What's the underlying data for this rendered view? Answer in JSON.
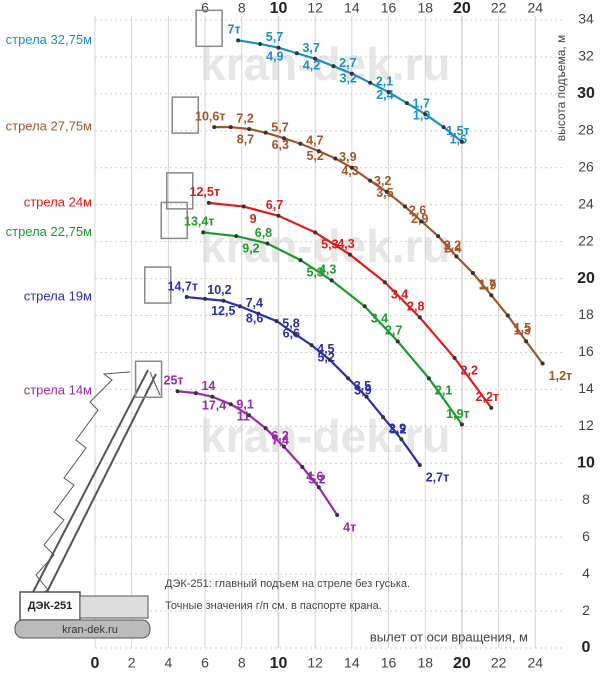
{
  "chart_data": {
    "type": "line",
    "x_label": "вылет от оси вращения, м",
    "y_label": "высота подъема, м",
    "notes": [
      "ДЭК-251: главный подъем на стреле без гуська.",
      "Точные значения г/п см. в паспорте крана."
    ],
    "crane_label": "ДЭК-251",
    "watermark": "kran-dek.ru",
    "xlim": [
      0,
      26
    ],
    "ylim": [
      0,
      34
    ],
    "xticks": [
      0,
      2,
      4,
      6,
      8,
      10,
      12,
      14,
      16,
      18,
      20,
      22,
      24
    ],
    "yticks": [
      0,
      2,
      4,
      6,
      8,
      10,
      12,
      14,
      16,
      18,
      20,
      22,
      24,
      26,
      28,
      30,
      32,
      34
    ],
    "grid": true,
    "series": [
      {
        "name": "стрела 32,75м",
        "color": "#1c8fc4",
        "x": [
          7.8,
          9.0,
          10.0,
          11.0,
          12.0,
          13.0,
          14.0,
          15.0,
          16.0,
          17.0,
          18.0,
          19.0,
          20.0
        ],
        "values": [
          32.9,
          32.7,
          32.5,
          32.2,
          31.9,
          31.5,
          31.1,
          30.6,
          30.1,
          29.5,
          28.9,
          28.2,
          27.4
        ],
        "loads": [
          7,
          4.9,
          5.7,
          4.2,
          3.7,
          3.2,
          2.7,
          2.4,
          2.1,
          1.9,
          1.7,
          1.6,
          1.5
        ],
        "load_labels": [
          "7т",
          "4,9",
          "5,7",
          "4,2",
          "3,7",
          "3,2",
          "2,7",
          "2,4",
          "2,1",
          "1,9",
          "1,7",
          "1,6",
          "1,5т"
        ]
      },
      {
        "name": "стрела 27,75м",
        "color": "#a3562a",
        "x": [
          6.5,
          7.4,
          8.4,
          9.3,
          10.3,
          11.2,
          12.2,
          13.1,
          14.0,
          15.0,
          15.9,
          16.9,
          17.8,
          18.7,
          19.7,
          20.6,
          21.6,
          22.5,
          23.5,
          24.4
        ],
        "values": [
          28.2,
          28.2,
          28.1,
          27.9,
          27.6,
          27.3,
          26.9,
          26.5,
          26.0,
          25.3,
          24.7,
          23.9,
          23.1,
          22.3,
          21.2,
          20.3,
          19.1,
          18.0,
          16.6,
          15.4
        ],
        "loads": [
          10.6,
          8.7,
          7.2,
          6.3,
          5.7,
          5.2,
          4.7,
          4.3,
          3.9,
          3.5,
          3.2,
          2.9,
          2.6,
          2.4,
          2.2,
          1.9,
          1.7,
          1.5,
          1.3,
          1.2
        ],
        "load_labels": [
          "10,6т",
          "8,7",
          "7,2",
          "6,3",
          "5,7",
          "5,2",
          "4,7",
          "4,3",
          "3,9",
          "3,5",
          "3,2",
          "2,9",
          "2,6",
          "2,4",
          "2,2",
          "1,9",
          "1,7",
          "1,5",
          "1,3",
          "1,2т"
        ]
      },
      {
        "name": "стрела 24м",
        "color": "#e01b1b",
        "x": [
          6.2,
          8.1,
          10.0,
          12.0,
          13.9,
          15.8,
          17.7,
          19.6,
          21.6
        ],
        "values": [
          24.1,
          23.9,
          23.4,
          22.5,
          21.3,
          19.8,
          17.9,
          15.7,
          13.0
        ],
        "loads": [
          12.5,
          9,
          6.7,
          5.3,
          4.3,
          3.4,
          2.8,
          2.2,
          2.2
        ],
        "load_labels": [
          "12,5т",
          "9",
          "6,7",
          "5,3",
          "4,3",
          "3,4",
          "2,8",
          "2,2",
          "2,2т"
        ]
      },
      {
        "name": "стрела 22,75м",
        "color": "#1d9a2c",
        "x": [
          5.9,
          7.7,
          9.4,
          11.2,
          12.9,
          14.7,
          16.5,
          18.2,
          20.0
        ],
        "values": [
          22.5,
          22.3,
          21.9,
          21.0,
          19.9,
          18.5,
          16.6,
          14.6,
          12.1
        ],
        "loads": [
          13.4,
          9.2,
          6.8,
          5.3,
          4.3,
          3.4,
          2.7,
          2.1,
          1.9
        ],
        "load_labels": [
          "13,4т",
          "9,2",
          "6,8",
          "5,3",
          "4,3",
          "3,4",
          "2,7",
          "2,1",
          "1,9т"
        ]
      },
      {
        "name": "стрела 19м",
        "color": "#2b2fae",
        "x": [
          5.0,
          6.0,
          7.0,
          7.9,
          8.9,
          9.9,
          10.9,
          11.8,
          12.8,
          13.8,
          14.8,
          15.7,
          16.7,
          17.7
        ],
        "values": [
          19.0,
          18.9,
          18.8,
          18.5,
          18.1,
          17.7,
          17.0,
          16.4,
          15.6,
          14.6,
          13.6,
          12.5,
          11.3,
          9.9
        ],
        "loads": [
          14.7,
          12.5,
          10.2,
          8.6,
          7.4,
          6.6,
          5.8,
          5.2,
          4.5,
          3.9,
          3.5,
          3.2,
          2.9,
          2.7
        ],
        "load_labels": [
          "14,7т",
          "12,5",
          "10,2",
          "8,6",
          "7,4",
          "6,6",
          "5,8",
          "5,2",
          "4,5",
          "3,9",
          "3,5",
          "3,2",
          "2,9",
          "2,7т"
        ]
      },
      {
        "name": "стрела 14м",
        "color": "#9a2aaa",
        "x": [
          4.5,
          5.5,
          6.4,
          7.4,
          8.4,
          9.3,
          10.3,
          11.3,
          12.2,
          13.2
        ],
        "values": [
          13.9,
          13.8,
          13.6,
          13.2,
          12.6,
          11.9,
          10.9,
          9.8,
          8.7,
          7.2
        ],
        "loads": [
          25,
          17.4,
          14,
          11,
          9.1,
          7.4,
          6.2,
          5.2,
          4.6,
          4
        ],
        "load_labels": [
          "25т",
          "17,4",
          "14",
          "11",
          "9,1",
          "7,4",
          "6,2",
          "5,2",
          "4,6",
          "4т"
        ]
      }
    ]
  }
}
